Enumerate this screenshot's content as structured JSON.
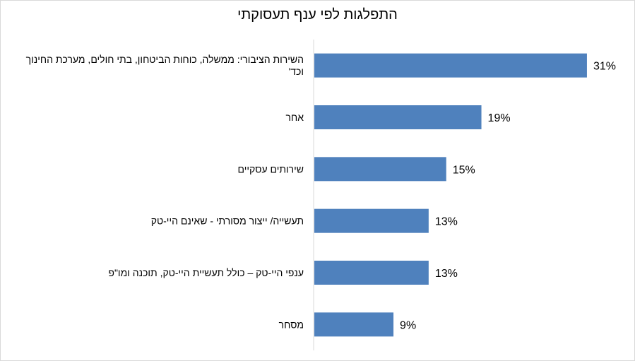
{
  "chart_data": {
    "type": "bar",
    "orientation": "horizontal",
    "title": "התפלגות לפי ענף תעסוקתי",
    "categories": [
      [
        "השירות הציבורי: ממשלה, כוחות הביטחון, בתי חולים, מערכת החינוך",
        "וכד'"
      ],
      [
        "אחר"
      ],
      [
        "שירותים עסקיים"
      ],
      [
        "תעשייה/ ייצור מסורתי - שאינם היי-טק"
      ],
      [
        "ענפי היי-טק – כולל תעשיית היי-טק, תוכנה ומו\"פ"
      ],
      [
        "מסחר"
      ]
    ],
    "values": [
      31,
      19,
      15,
      13,
      13,
      9
    ],
    "value_labels": [
      "31%",
      "19%",
      "15%",
      "13%",
      "13%",
      "9%"
    ],
    "xlim": [
      0,
      35
    ],
    "grid": false,
    "legend": "none",
    "bar_color": "#4f81bd",
    "axis_color": "#d9d9d9"
  }
}
